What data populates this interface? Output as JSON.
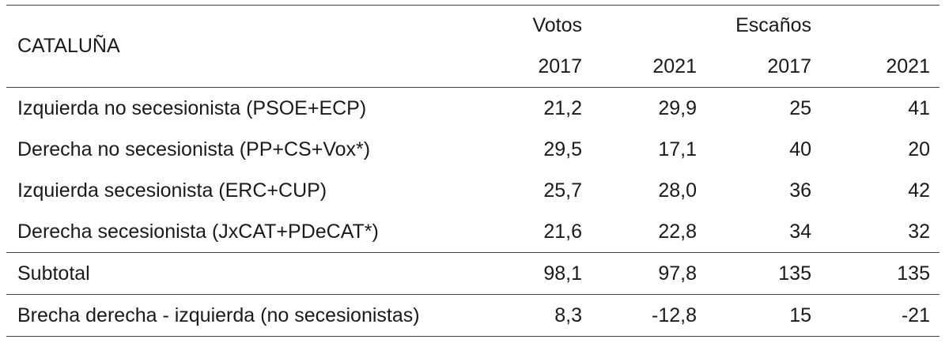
{
  "table": {
    "region_label": "CATALUÑA",
    "group_headers": [
      "Votos",
      "Escaños"
    ],
    "year_headers": [
      "2017",
      "2021",
      "2017",
      "2021"
    ],
    "rows": [
      {
        "label": "Izquierda no secesionista (PSOE+ECP)",
        "values": [
          "21,2",
          "29,9",
          "25",
          "41"
        ]
      },
      {
        "label": "Derecha no secesionista (PP+CS+Vox*)",
        "values": [
          "29,5",
          "17,1",
          "40",
          "20"
        ]
      },
      {
        "label": "Izquierda secesionista (ERC+CUP)",
        "values": [
          "25,7",
          "28,0",
          "36",
          "42"
        ]
      },
      {
        "label": "Derecha secesionista (JxCAT+PDeCAT*)",
        "values": [
          "21,6",
          "22,8",
          "34",
          "32"
        ]
      }
    ],
    "subtotal": {
      "label": "Subtotal",
      "values": [
        "98,1",
        "97,8",
        "135",
        "135"
      ]
    },
    "gap": {
      "label": "Brecha derecha - izquierda (no secesionistas)",
      "values": [
        "8,3",
        "-12,8",
        "15",
        "-21"
      ]
    }
  }
}
